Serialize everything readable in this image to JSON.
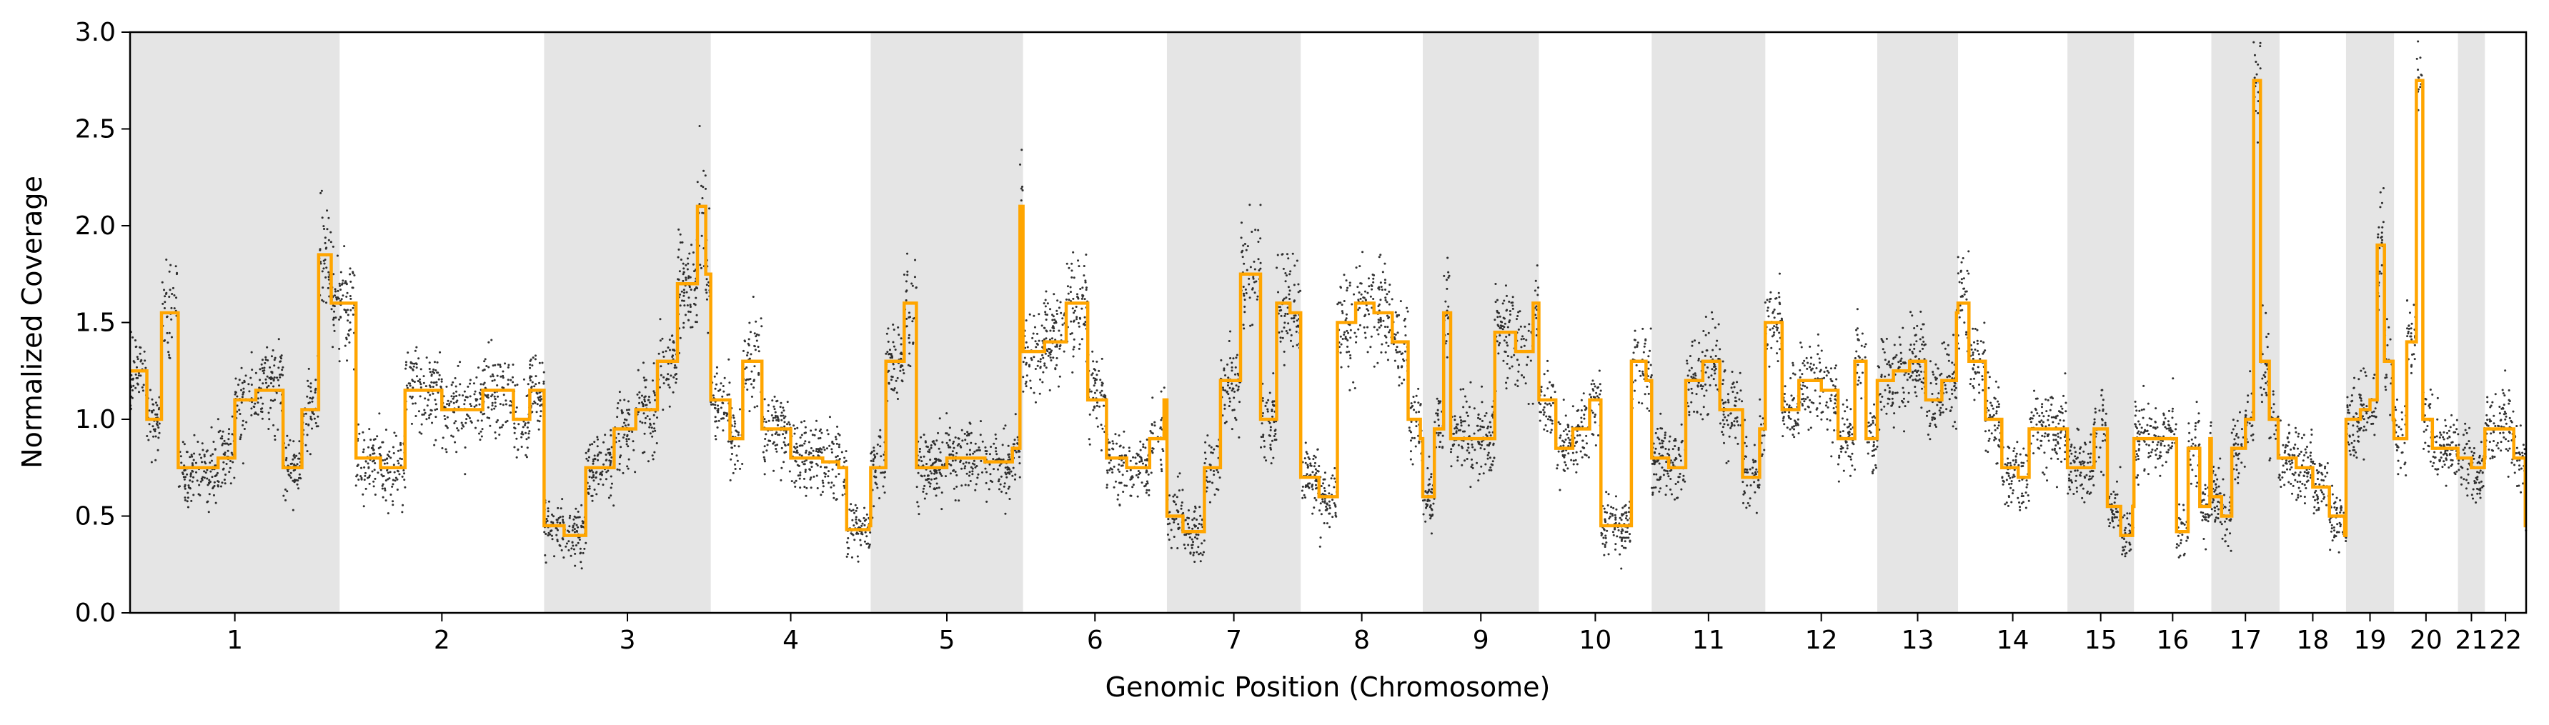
{
  "chart_data": {
    "type": "scatter",
    "xlabel": "Genomic Position (Chromosome)",
    "ylabel": "Normalized Coverage",
    "ylim": [
      0,
      3
    ],
    "yticks": [
      "0.0",
      "0.5",
      "1.0",
      "1.5",
      "2.0",
      "2.5",
      "3.0"
    ],
    "grid": false,
    "colors": {
      "points": "#000000",
      "segments": "#FFA500",
      "shade": "#E5E5E5"
    },
    "chromosomes": [
      {
        "name": "1",
        "length": 249,
        "shaded": true
      },
      {
        "name": "2",
        "length": 243,
        "shaded": false
      },
      {
        "name": "3",
        "length": 198,
        "shaded": true
      },
      {
        "name": "4",
        "length": 190,
        "shaded": false
      },
      {
        "name": "5",
        "length": 181,
        "shaded": true
      },
      {
        "name": "6",
        "length": 171,
        "shaded": false
      },
      {
        "name": "7",
        "length": 159,
        "shaded": true
      },
      {
        "name": "8",
        "length": 145,
        "shaded": false
      },
      {
        "name": "9",
        "length": 138,
        "shaded": true
      },
      {
        "name": "10",
        "length": 134,
        "shaded": false
      },
      {
        "name": "11",
        "length": 135,
        "shaded": true
      },
      {
        "name": "12",
        "length": 133,
        "shaded": false
      },
      {
        "name": "13",
        "length": 96,
        "shaded": true
      },
      {
        "name": "14",
        "length": 130,
        "shaded": false
      },
      {
        "name": "15",
        "length": 79,
        "shaded": true
      },
      {
        "name": "16",
        "length": 92,
        "shaded": false
      },
      {
        "name": "17",
        "length": 81,
        "shaded": true
      },
      {
        "name": "18",
        "length": 79,
        "shaded": false
      },
      {
        "name": "19",
        "length": 57,
        "shaded": true
      },
      {
        "name": "20",
        "length": 76,
        "shaded": false
      },
      {
        "name": "21",
        "length": 32,
        "shaded": true
      },
      {
        "name": "22",
        "length": 49,
        "shaded": false
      }
    ],
    "segments": [
      {
        "chrom": "1",
        "profile": [
          [
            0,
            1.25
          ],
          [
            0.08,
            1.0
          ],
          [
            0.15,
            1.55
          ],
          [
            0.23,
            0.75
          ],
          [
            0.42,
            0.8
          ],
          [
            0.5,
            1.1
          ],
          [
            0.6,
            1.15
          ],
          [
            0.73,
            0.75
          ],
          [
            0.82,
            1.05
          ],
          [
            0.9,
            1.85
          ],
          [
            0.96,
            1.6
          ]
        ]
      },
      {
        "chrom": "2",
        "profile": [
          [
            0,
            1.6
          ],
          [
            0.08,
            0.8
          ],
          [
            0.2,
            0.75
          ],
          [
            0.32,
            1.15
          ],
          [
            0.5,
            1.05
          ],
          [
            0.7,
            1.15
          ],
          [
            0.85,
            1.0
          ],
          [
            0.93,
            1.15
          ]
        ]
      },
      {
        "chrom": "3",
        "profile": [
          [
            0,
            0.45
          ],
          [
            0.12,
            0.4
          ],
          [
            0.25,
            0.75
          ],
          [
            0.42,
            0.95
          ],
          [
            0.55,
            1.05
          ],
          [
            0.68,
            1.3
          ],
          [
            0.8,
            1.7
          ],
          [
            0.92,
            2.1
          ],
          [
            0.97,
            1.75
          ]
        ]
      },
      {
        "chrom": "4",
        "profile": [
          [
            0,
            1.1
          ],
          [
            0.12,
            0.9
          ],
          [
            0.2,
            1.3
          ],
          [
            0.32,
            0.95
          ],
          [
            0.5,
            0.8
          ],
          [
            0.7,
            0.78
          ],
          [
            0.8,
            0.75
          ],
          [
            0.85,
            0.43
          ],
          [
            0.99,
            0.45
          ]
        ]
      },
      {
        "chrom": "5",
        "profile": [
          [
            0,
            0.75
          ],
          [
            0.1,
            1.3
          ],
          [
            0.22,
            1.6
          ],
          [
            0.3,
            0.75
          ],
          [
            0.5,
            0.8
          ],
          [
            0.75,
            0.78
          ],
          [
            0.93,
            0.85
          ],
          [
            0.98,
            2.1
          ]
        ]
      },
      {
        "chrom": "6",
        "profile": [
          [
            0,
            1.35
          ],
          [
            0.15,
            1.4
          ],
          [
            0.3,
            1.6
          ],
          [
            0.45,
            1.1
          ],
          [
            0.58,
            0.8
          ],
          [
            0.72,
            0.75
          ],
          [
            0.88,
            0.9
          ],
          [
            0.98,
            1.1
          ]
        ]
      },
      {
        "chrom": "7",
        "profile": [
          [
            0,
            0.5
          ],
          [
            0.12,
            0.42
          ],
          [
            0.28,
            0.75
          ],
          [
            0.4,
            1.2
          ],
          [
            0.55,
            1.75
          ],
          [
            0.7,
            1.0
          ],
          [
            0.82,
            1.6
          ],
          [
            0.92,
            1.55
          ]
        ]
      },
      {
        "chrom": "8",
        "profile": [
          [
            0,
            0.7
          ],
          [
            0.15,
            0.6
          ],
          [
            0.3,
            1.5
          ],
          [
            0.45,
            1.6
          ],
          [
            0.6,
            1.55
          ],
          [
            0.75,
            1.4
          ],
          [
            0.88,
            1.0
          ],
          [
            0.98,
            0.9
          ]
        ]
      },
      {
        "chrom": "9",
        "profile": [
          [
            0,
            0.6
          ],
          [
            0.1,
            0.95
          ],
          [
            0.18,
            1.55
          ],
          [
            0.24,
            0.9
          ],
          [
            0.52,
            0.9
          ],
          [
            0.62,
            1.45
          ],
          [
            0.8,
            1.35
          ],
          [
            0.95,
            1.6
          ]
        ]
      },
      {
        "chrom": "10",
        "profile": [
          [
            0,
            1.1
          ],
          [
            0.15,
            0.85
          ],
          [
            0.3,
            0.95
          ],
          [
            0.45,
            1.1
          ],
          [
            0.55,
            0.45
          ],
          [
            0.7,
            0.45
          ],
          [
            0.82,
            1.3
          ],
          [
            0.95,
            1.2
          ]
        ]
      },
      {
        "chrom": "11",
        "profile": [
          [
            0,
            0.8
          ],
          [
            0.15,
            0.75
          ],
          [
            0.3,
            1.2
          ],
          [
            0.45,
            1.3
          ],
          [
            0.6,
            1.05
          ],
          [
            0.8,
            0.7
          ],
          [
            0.95,
            0.95
          ]
        ]
      },
      {
        "chrom": "12",
        "profile": [
          [
            0,
            1.5
          ],
          [
            0.15,
            1.05
          ],
          [
            0.3,
            1.2
          ],
          [
            0.5,
            1.15
          ],
          [
            0.65,
            0.9
          ],
          [
            0.8,
            1.3
          ],
          [
            0.9,
            0.9
          ],
          [
            0.98,
            0.9
          ]
        ]
      },
      {
        "chrom": "13",
        "profile": [
          [
            0,
            1.2
          ],
          [
            0.2,
            1.25
          ],
          [
            0.4,
            1.3
          ],
          [
            0.6,
            1.1
          ],
          [
            0.8,
            1.2
          ],
          [
            0.98,
            1.55
          ]
        ]
      },
      {
        "chrom": "14",
        "profile": [
          [
            0,
            1.6
          ],
          [
            0.1,
            1.3
          ],
          [
            0.25,
            1.0
          ],
          [
            0.4,
            0.75
          ],
          [
            0.55,
            0.7
          ],
          [
            0.65,
            0.95
          ],
          [
            0.98,
            0.95
          ]
        ]
      },
      {
        "chrom": "15",
        "profile": [
          [
            0,
            0.75
          ],
          [
            0.2,
            0.75
          ],
          [
            0.4,
            0.95
          ],
          [
            0.6,
            0.55
          ],
          [
            0.8,
            0.4
          ],
          [
            0.98,
            0.55
          ]
        ]
      },
      {
        "chrom": "16",
        "profile": [
          [
            0,
            0.9
          ],
          [
            0.3,
            0.9
          ],
          [
            0.55,
            0.42
          ],
          [
            0.7,
            0.85
          ],
          [
            0.85,
            0.55
          ],
          [
            0.98,
            0.9
          ]
        ]
      },
      {
        "chrom": "17",
        "profile": [
          [
            0,
            0.6
          ],
          [
            0.15,
            0.5
          ],
          [
            0.3,
            0.85
          ],
          [
            0.5,
            1.0
          ],
          [
            0.62,
            2.75
          ],
          [
            0.72,
            1.3
          ],
          [
            0.85,
            1.0
          ],
          [
            0.98,
            0.8
          ]
        ]
      },
      {
        "chrom": "18",
        "profile": [
          [
            0,
            0.8
          ],
          [
            0.25,
            0.75
          ],
          [
            0.5,
            0.65
          ],
          [
            0.75,
            0.5
          ],
          [
            0.98,
            0.4
          ]
        ]
      },
      {
        "chrom": "19",
        "profile": [
          [
            0,
            1.0
          ],
          [
            0.3,
            1.05
          ],
          [
            0.5,
            1.1
          ],
          [
            0.65,
            1.9
          ],
          [
            0.8,
            1.3
          ],
          [
            0.98,
            1.0
          ]
        ]
      },
      {
        "chrom": "20",
        "profile": [
          [
            0,
            0.9
          ],
          [
            0.2,
            1.4
          ],
          [
            0.35,
            2.75
          ],
          [
            0.45,
            1.0
          ],
          [
            0.6,
            0.85
          ],
          [
            0.98,
            0.85
          ]
        ]
      },
      {
        "chrom": "21",
        "profile": [
          [
            0,
            0.8
          ],
          [
            0.5,
            0.75
          ],
          [
            0.98,
            0.8
          ]
        ]
      },
      {
        "chrom": "22",
        "profile": [
          [
            0,
            0.95
          ],
          [
            0.4,
            0.95
          ],
          [
            0.7,
            0.8
          ],
          [
            0.98,
            0.45
          ]
        ]
      }
    ]
  }
}
